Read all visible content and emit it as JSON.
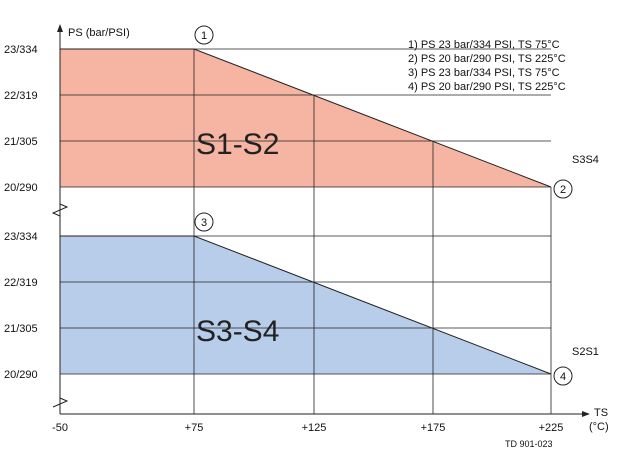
{
  "chart_data": [
    {
      "type": "area",
      "region_label": "S1-S2",
      "color": "#f6b4a3",
      "series_tag": "S3S4",
      "y_tick_labels": [
        "20/290",
        "21/305",
        "22/319",
        "23/334"
      ],
      "y_values": [
        20,
        21,
        22,
        23
      ],
      "ylim": [
        20,
        23
      ],
      "points": [
        {
          "x": -50,
          "y": 23
        },
        {
          "x": 75,
          "y": 23,
          "marker": "1"
        },
        {
          "x": 225,
          "y": 20,
          "marker": "2"
        }
      ]
    },
    {
      "type": "area",
      "region_label": "S3-S4",
      "color": "#b7cdea",
      "series_tag": "S2S1",
      "y_tick_labels": [
        "20/290",
        "21/305",
        "22/319",
        "23/334"
      ],
      "y_values": [
        20,
        21,
        22,
        23
      ],
      "ylim": [
        20,
        23
      ],
      "points": [
        {
          "x": -50,
          "y": 23
        },
        {
          "x": 75,
          "y": 23,
          "marker": "3"
        },
        {
          "x": 225,
          "y": 20,
          "marker": "4"
        }
      ]
    }
  ],
  "axes": {
    "y_title": "PS (bar/PSI)",
    "x_title_line1": "TS",
    "x_title_line2": "(°C)",
    "x_tick_labels": [
      "-50",
      "+75",
      "+125",
      "+175",
      "+225"
    ],
    "x_values": [
      -50,
      75,
      125,
      175,
      225
    ],
    "xlim": [
      -50,
      225
    ]
  },
  "legend": [
    "1) PS 23 bar/334 PSI, TS 75°C",
    "2) PS 20 bar/290 PSI, TS 225°C",
    "3) PS 23 bar/334 PSI, TS 75°C",
    "4) PS 20 bar/290 PSI, TS 225°C"
  ],
  "reference_code": "TD 901-023"
}
